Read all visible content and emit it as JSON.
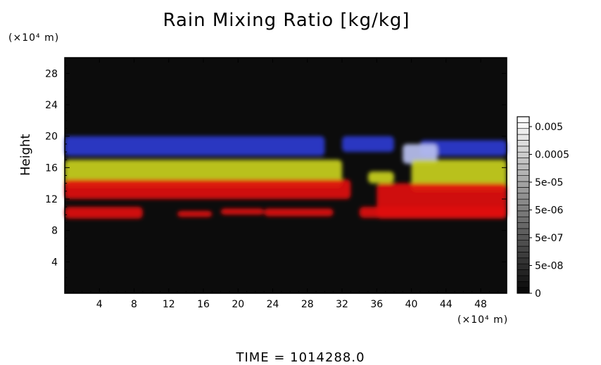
{
  "title": "Rain Mixing Ratio [kg/kg]",
  "y_unit": "(×10⁴ m)",
  "x_unit": "(×10⁴ m)",
  "ylabel": "Height",
  "time_label": "TIME = 1014288.0",
  "colors": {
    "background": "#0c0c0c",
    "red": "#e01010",
    "yellow": "#c8d020",
    "blue": "#2a3ad0",
    "lightblue": "#b8c0f0",
    "green": "#3a8a20"
  },
  "chart_data": {
    "type": "heatmap",
    "title": "Rain Mixing Ratio [kg/kg]",
    "xlabel": "",
    "ylabel": "Height",
    "xlim": [
      0,
      51
    ],
    "ylim": [
      0,
      30
    ],
    "x_ticks": [
      "4",
      "8",
      "12",
      "16",
      "20",
      "24",
      "28",
      "32",
      "36",
      "40",
      "44",
      "48"
    ],
    "y_ticks": [
      "4",
      "8",
      "12",
      "16",
      "20",
      "24",
      "28"
    ],
    "colorbar_labels": [
      "0.005",
      "0.0005",
      "5e-05",
      "5e-06",
      "5e-07",
      "5e-08",
      "0"
    ],
    "colorbar_min": 0,
    "colorbar_max": 0.005,
    "bands": [
      {
        "color": "blue",
        "segments": [
          [
            0,
            30,
            17.5,
            20
          ],
          [
            32,
            38,
            18,
            20
          ],
          [
            41,
            51,
            17.5,
            19.5
          ]
        ]
      },
      {
        "color": "lightblue",
        "segments": [
          [
            39,
            43,
            16.5,
            19
          ]
        ]
      },
      {
        "color": "yellow",
        "segments": [
          [
            0,
            32,
            13.5,
            17
          ],
          [
            35,
            38,
            14,
            15.5
          ],
          [
            40,
            51,
            13,
            17
          ]
        ]
      },
      {
        "color": "red",
        "segments": [
          [
            0,
            33,
            12,
            14.5
          ],
          [
            36,
            51,
            9.5,
            14
          ]
        ]
      },
      {
        "color": "red",
        "segments": [
          [
            0,
            9,
            9.5,
            11
          ],
          [
            13,
            17,
            9.7,
            10.5
          ],
          [
            18,
            23,
            10,
            10.8
          ],
          [
            23,
            31,
            9.8,
            10.8
          ],
          [
            34,
            51,
            9.6,
            11
          ]
        ]
      }
    ]
  }
}
